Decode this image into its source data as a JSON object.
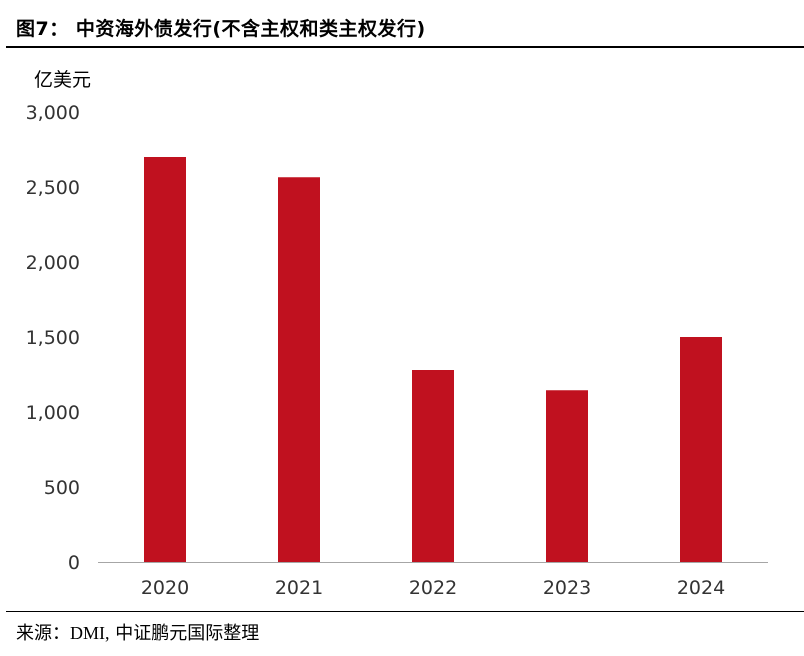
{
  "figure": {
    "title": "图7： 中资海外债发行(不含主权和类主权发行)",
    "source_prefix": "来源：",
    "source_latin": "DMI,",
    "source_suffix": " 中证鹏元国际整理"
  },
  "colors": {
    "bar": "#C0111F",
    "axis": "#A6A6A6",
    "text": "#333333",
    "rule": "#000000"
  },
  "chart_data": {
    "type": "bar",
    "title": "",
    "xlabel": "",
    "ylabel": "亿美元",
    "categories": [
      "2020",
      "2021",
      "2022",
      "2023",
      "2024"
    ],
    "values": [
      2700,
      2565,
      1280,
      1145,
      1500
    ],
    "ylim": [
      0,
      3000
    ],
    "yticks": [
      0,
      500,
      1000,
      1500,
      2000,
      2500,
      3000
    ],
    "ytick_labels": [
      "0",
      "500",
      "1,000",
      "1,500",
      "2,000",
      "2,500",
      "3,000"
    ],
    "grid": false,
    "legend": "none"
  }
}
